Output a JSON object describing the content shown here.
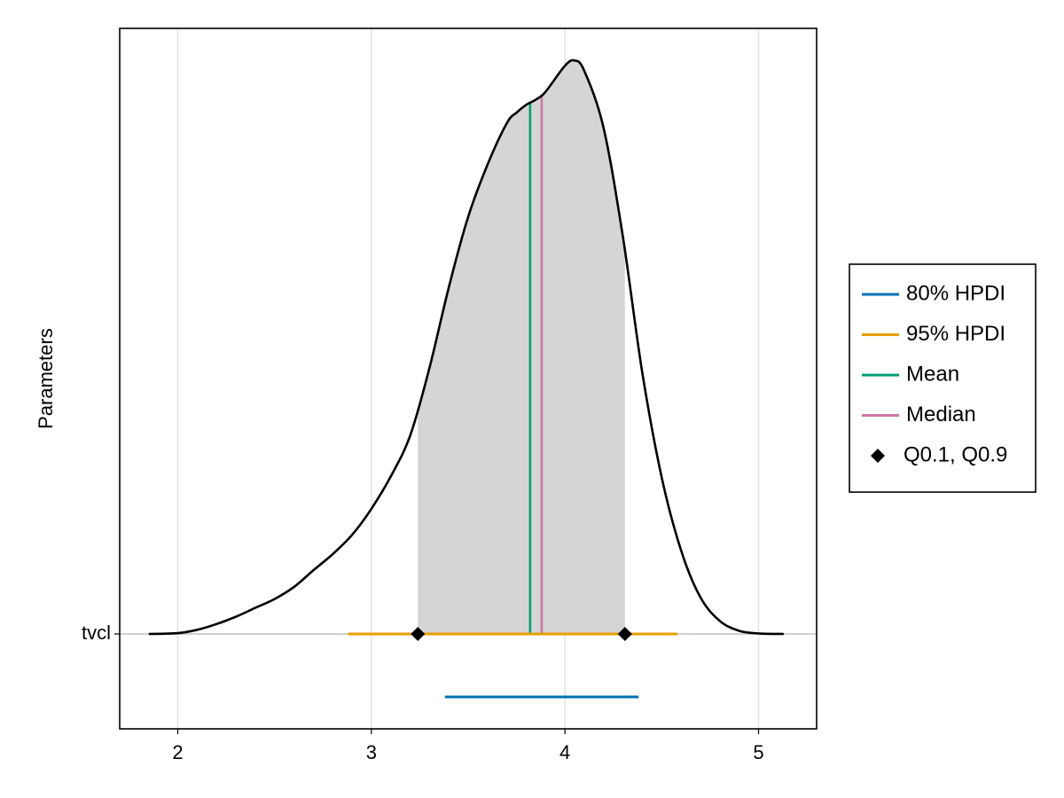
{
  "chart_data": {
    "type": "density",
    "ylabel": "Parameters",
    "xlim": [
      1.7,
      5.3
    ],
    "xticks": [
      "2",
      "3",
      "4",
      "5"
    ],
    "yticks": [
      "tvcl"
    ],
    "grid": true,
    "legend_position": "right",
    "colors": {
      "hpdi80": "#0072b2",
      "hpdi95": "#e69f00",
      "mean": "#009e73",
      "median": "#cc79a7",
      "quantiles": "#000000",
      "fill": "#d5d5d5",
      "density": "#000000"
    },
    "series": [
      {
        "name": "tvcl",
        "density": {
          "x": [
            1.85,
            2.0,
            2.1,
            2.2,
            2.3,
            2.4,
            2.5,
            2.6,
            2.7,
            2.8,
            2.9,
            3.0,
            3.1,
            3.2,
            3.3,
            3.4,
            3.5,
            3.6,
            3.7,
            3.75,
            3.8,
            3.85,
            3.9,
            4.0,
            4.05,
            4.1,
            4.2,
            4.3,
            4.4,
            4.5,
            4.6,
            4.7,
            4.8,
            4.9,
            5.0,
            5.13
          ],
          "y": [
            0.0,
            0.0015,
            0.008,
            0.019,
            0.033,
            0.05,
            0.067,
            0.09,
            0.122,
            0.153,
            0.19,
            0.24,
            0.302,
            0.38,
            0.51,
            0.665,
            0.8,
            0.9,
            0.98,
            1.0,
            1.015,
            1.025,
            1.04,
            1.09,
            1.1,
            1.08,
            0.97,
            0.76,
            0.5,
            0.3,
            0.16,
            0.07,
            0.025,
            0.006,
            0.001,
            0.0
          ]
        },
        "shaded_range": [
          3.24,
          4.31
        ],
        "hpdi_95": [
          2.88,
          4.58
        ],
        "hpdi_80": [
          3.38,
          4.38
        ],
        "mean": 3.82,
        "median": 3.88,
        "quantiles": [
          3.24,
          4.31
        ]
      }
    ],
    "legend": [
      {
        "label": "80% HPDI",
        "marker": "line",
        "color_key": "hpdi80"
      },
      {
        "label": "95% HPDI",
        "marker": "line",
        "color_key": "hpdi95"
      },
      {
        "label": "Mean",
        "marker": "line",
        "color_key": "mean"
      },
      {
        "label": "Median",
        "marker": "line",
        "color_key": "median"
      },
      {
        "label": "Q0.1, Q0.9",
        "marker": "diamond",
        "color_key": "quantiles"
      }
    ]
  }
}
